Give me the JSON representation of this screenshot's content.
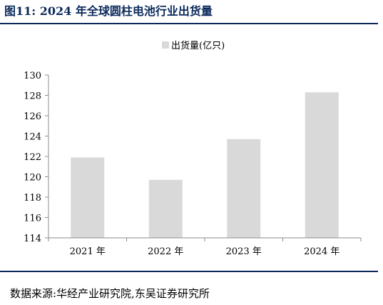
{
  "figure": {
    "title": "图11:  2024 年全球圆柱电池行业出货量",
    "source": "数据来源:华经产业研究院,东吴证券研究所"
  },
  "chart_data": {
    "type": "bar",
    "categories": [
      "2021 年",
      "2022 年",
      "2023 年",
      "2024 年"
    ],
    "series": [
      {
        "name": "出货量(亿只)",
        "values": [
          121.9,
          119.7,
          123.7,
          128.3
        ]
      }
    ],
    "title": "",
    "xlabel": "",
    "ylabel": "",
    "ylim": [
      114,
      130
    ],
    "yticks": [
      114,
      116,
      118,
      120,
      122,
      124,
      126,
      128,
      130
    ],
    "grid": false,
    "legend_position": "top-center",
    "colors": {
      "bar": "#d9d9d9",
      "axis": "#8c8c8c",
      "title": "#0b2a5b"
    }
  }
}
